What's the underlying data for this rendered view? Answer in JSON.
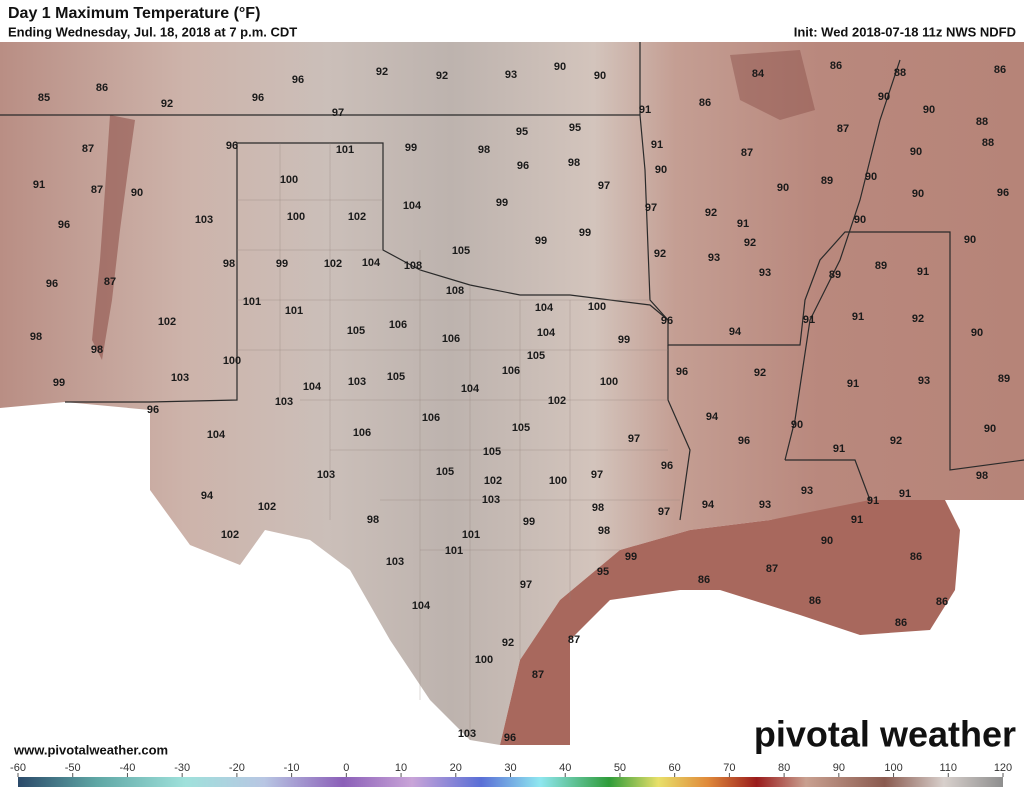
{
  "header": {
    "title": "Day 1 Maximum Temperature (°F)",
    "subtitle": "Ending Wednesday, Jul. 18, 2018 at 7 p.m. CDT",
    "init": "Init: Wed 2018-07-18 11z NWS NDFD"
  },
  "footer": {
    "website": "www.pivotalweather.com",
    "logo": "pivotal weather"
  },
  "colorbar": {
    "ticks": [
      -60,
      -50,
      -40,
      -30,
      -20,
      -10,
      0,
      10,
      20,
      30,
      40,
      50,
      60,
      70,
      80,
      90,
      100,
      110,
      120
    ]
  },
  "map": {
    "labels": [
      85,
      86,
      92,
      96,
      96,
      92,
      92,
      93,
      90,
      90,
      84,
      86,
      88,
      86,
      97,
      91,
      86,
      90,
      90,
      87,
      88,
      96,
      101,
      99,
      98,
      95,
      95,
      91,
      88,
      87,
      87,
      90,
      96,
      98,
      90,
      89,
      90,
      91,
      100,
      87,
      90,
      97,
      90,
      90,
      96,
      104,
      99,
      100,
      102,
      103,
      97,
      92,
      96,
      91,
      90,
      99,
      99,
      90,
      92,
      105,
      92,
      93,
      89,
      91,
      98,
      99,
      102,
      104,
      108,
      93,
      89,
      96,
      87,
      108,
      101,
      101,
      104,
      100,
      96,
      91,
      92,
      102,
      106,
      105,
      104,
      106,
      94,
      91,
      98,
      99,
      90,
      98,
      105,
      100,
      92,
      106,
      105,
      103,
      104,
      103,
      96,
      100,
      91,
      93,
      89,
      99,
      104,
      102,
      103,
      96,
      94,
      90,
      90,
      106,
      105,
      104,
      106,
      96,
      92,
      97,
      91,
      105,
      96,
      105,
      103,
      97,
      100,
      102,
      98,
      93,
      91,
      91,
      94,
      103,
      98,
      94,
      93,
      97,
      102,
      98,
      99,
      98,
      91,
      102,
      101,
      90,
      101,
      99,
      103,
      86,
      95,
      87,
      86,
      97,
      104,
      86,
      86,
      86,
      87,
      92,
      100,
      87,
      103,
      96
    ]
  }
}
